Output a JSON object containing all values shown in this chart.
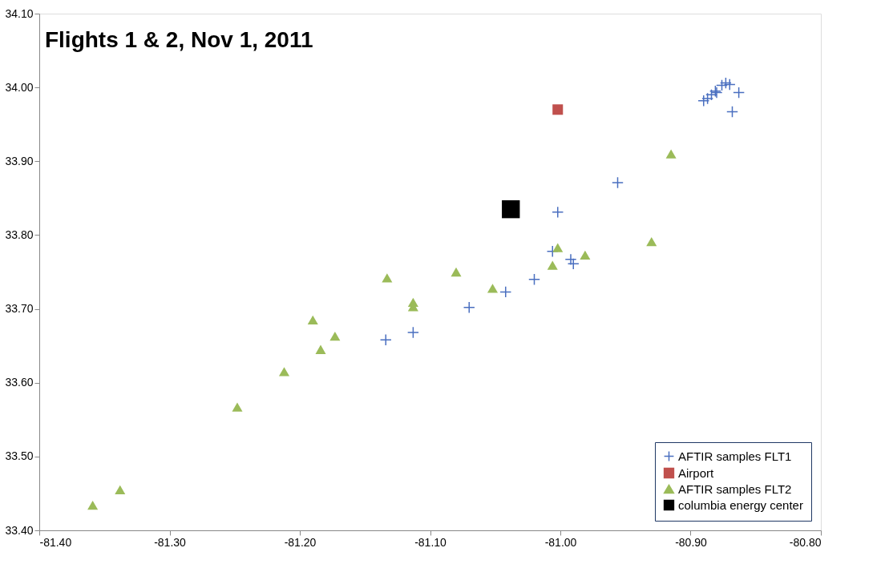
{
  "chart_data": {
    "type": "scatter",
    "title": "Flights 1 & 2, Nov 1, 2011",
    "xlim": [
      -81.4,
      -80.8
    ],
    "xticks": [
      {
        "value": -81.4,
        "label": "-81.40"
      },
      {
        "value": -81.3,
        "label": "-81.30"
      },
      {
        "value": -81.2,
        "label": "-81.20"
      },
      {
        "value": -81.1,
        "label": "-81.10"
      },
      {
        "value": -81.0,
        "label": "-81.00"
      },
      {
        "value": -80.9,
        "label": "-80.90"
      },
      {
        "value": -80.8,
        "label": "-80.80"
      }
    ],
    "ylim": [
      33.4,
      34.1
    ],
    "yticks": [
      {
        "value": 33.4,
        "label": "33.40"
      },
      {
        "value": 33.5,
        "label": "33.50"
      },
      {
        "value": 33.6,
        "label": "33.60"
      },
      {
        "value": 33.7,
        "label": "33.70"
      },
      {
        "value": 33.8,
        "label": "33.80"
      },
      {
        "value": 33.9,
        "label": "33.90"
      },
      {
        "value": 34.0,
        "label": "34.00"
      },
      {
        "value": 34.1,
        "label": "34.10"
      }
    ],
    "grid": false,
    "legend": "bottom right",
    "series": [
      {
        "name": "AFTIR samples FLT1",
        "color": "#4a6fc0",
        "marker": "cross",
        "x": [
          -80.89,
          -80.887,
          -80.884,
          -80.881,
          -80.876,
          -80.873,
          -80.87,
          -80.88,
          -80.863,
          -80.868,
          -80.956,
          -81.002,
          -81.006,
          -80.992,
          -80.99,
          -81.02,
          -81.042,
          -81.07,
          -81.113,
          -81.134
        ],
        "values": [
          33.982,
          33.985,
          33.99,
          33.995,
          34.003,
          34.006,
          34.004,
          33.993,
          33.993,
          33.967,
          33.871,
          33.831,
          33.778,
          33.767,
          33.761,
          33.74,
          33.723,
          33.702,
          33.668,
          33.658
        ]
      },
      {
        "name": "Airport",
        "color": "#c0504d",
        "marker": "square",
        "x": [
          -81.002
        ],
        "values": [
          33.97
        ]
      },
      {
        "name": "AFTIR samples FLT2",
        "color": "#9bbb59",
        "marker": "triangle",
        "x": [
          -80.915,
          -80.93,
          -80.981,
          -81.002,
          -81.006,
          -81.052,
          -81.08,
          -81.113,
          -81.113,
          -81.133,
          -81.19,
          -81.173,
          -81.184,
          -81.212,
          -81.248,
          -81.338,
          -81.359
        ],
        "values": [
          33.91,
          33.791,
          33.773,
          33.783,
          33.759,
          33.728,
          33.75,
          33.709,
          33.703,
          33.742,
          33.685,
          33.663,
          33.645,
          33.615,
          33.567,
          33.455,
          33.434
        ]
      },
      {
        "name": "columbia energy center",
        "color": "#000000",
        "marker": "square",
        "x": [
          -81.038
        ],
        "values": [
          33.835
        ]
      }
    ]
  }
}
